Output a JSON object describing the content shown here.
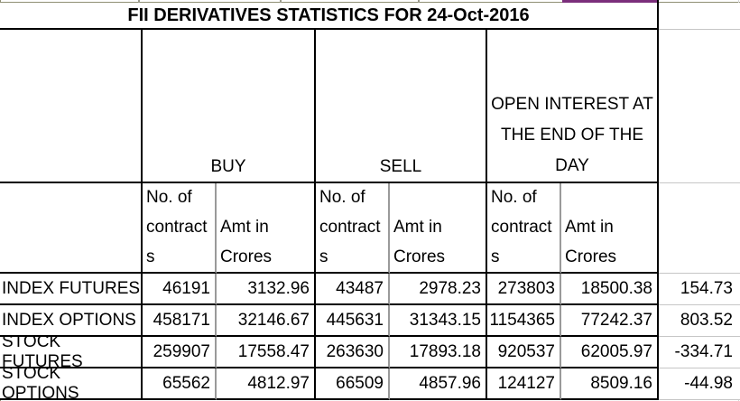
{
  "title": "FII DERIVATIVES STATISTICS FOR 24-Oct-2016",
  "sections": {
    "buy": "BUY",
    "sell": "SELL",
    "open_interest": "OPEN INTEREST AT\nTHE END OF THE\nDAY"
  },
  "subheaders": {
    "contracts": "No. of\ncontract\ns",
    "amount": "Amt in\nCrores"
  },
  "rows": [
    {
      "label": "INDEX FUTURES",
      "buy_contracts": "46191",
      "buy_amount": "3132.96",
      "sell_contracts": "43487",
      "sell_amount": "2978.23",
      "oi_contracts": "273803",
      "oi_amount": "18500.38",
      "net": "154.73"
    },
    {
      "label": "INDEX OPTIONS",
      "buy_contracts": "458171",
      "buy_amount": "32146.67",
      "sell_contracts": "445631",
      "sell_amount": "31343.15",
      "oi_contracts": "1154365",
      "oi_amount": "77242.37",
      "net": "803.52"
    },
    {
      "label": "STOCK FUTURES",
      "buy_contracts": "259907",
      "buy_amount": "17558.47",
      "sell_contracts": "263630",
      "sell_amount": "17893.18",
      "oi_contracts": "920537",
      "oi_amount": "62005.97",
      "net": "-334.71"
    },
    {
      "label": "STOCK OPTIONS",
      "buy_contracts": "65562",
      "buy_amount": "4812.97",
      "sell_contracts": "66509",
      "sell_amount": "4857.96",
      "oi_contracts": "124127",
      "oi_amount": "8509.16",
      "net": "-44.98"
    }
  ],
  "colors": {
    "border_black": "#000000",
    "border_gray": "#9a9a9a",
    "gridline_light": "#c6c6c6",
    "gridline_olive": "#8f8f74",
    "accent_magenta": "#7b2e7b",
    "background": "#ffffff"
  }
}
